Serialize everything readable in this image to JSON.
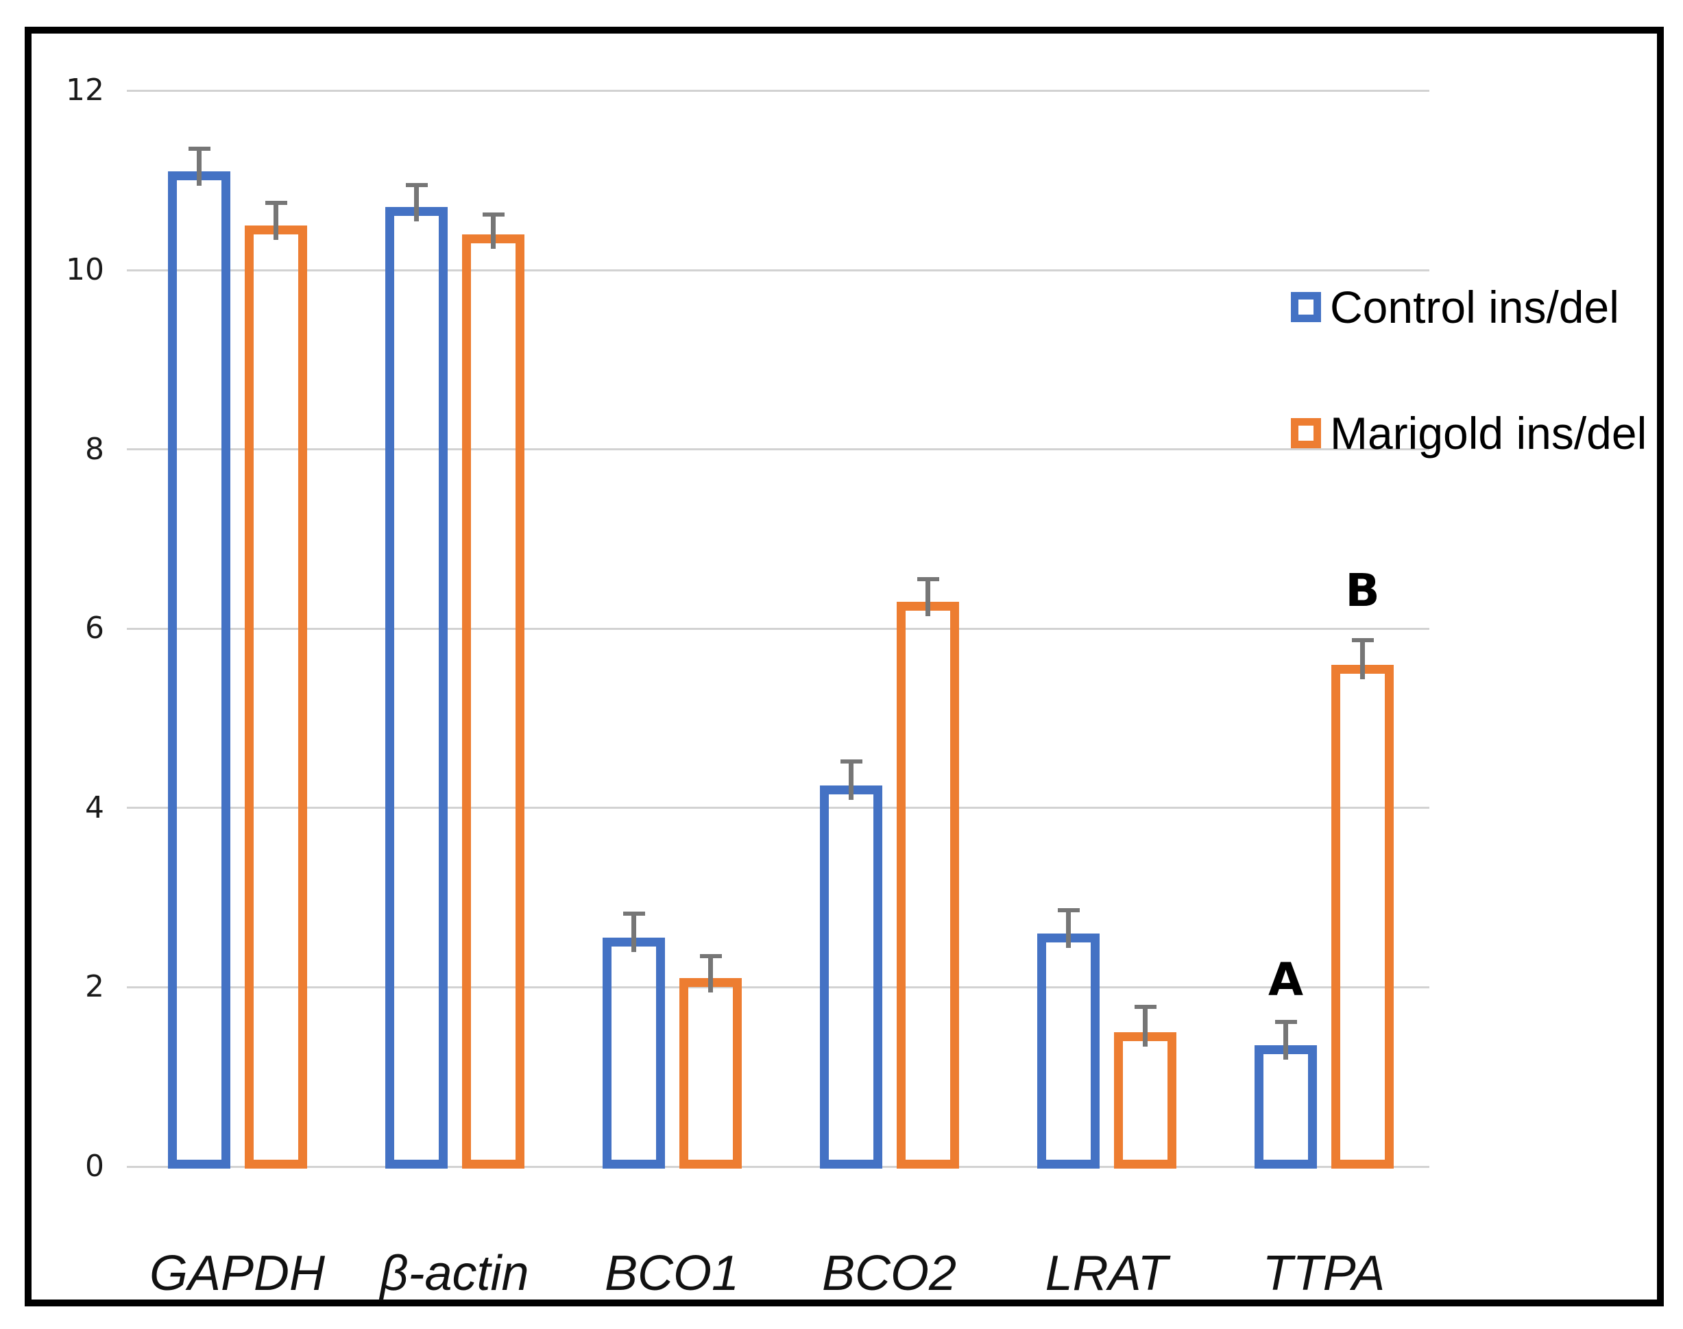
{
  "chart_data": {
    "type": "bar",
    "title": "",
    "xlabel": "",
    "ylabel": "",
    "categories": [
      "GAPDH",
      "β-actin",
      "BCO1",
      "BCO2",
      "LRAT",
      "TTPA"
    ],
    "series": [
      {
        "name": "Control ins/del",
        "color": "#4472C4",
        "values": [
          11.1,
          10.7,
          2.55,
          4.25,
          2.6,
          1.35
        ],
        "errors": [
          0.25,
          0.25,
          0.27,
          0.27,
          0.26,
          0.26
        ]
      },
      {
        "name": "Marigold ins/del",
        "color": "#ED7D31",
        "values": [
          10.5,
          10.4,
          2.1,
          6.3,
          1.5,
          5.6
        ],
        "errors": [
          0.25,
          0.22,
          0.25,
          0.25,
          0.28,
          0.27
        ]
      }
    ],
    "ylim": [
      0,
      12
    ],
    "yticks": [
      0,
      2,
      4,
      6,
      8,
      10,
      12
    ],
    "grid": true,
    "bar_style": "outlined-hollow",
    "legend_position": "upper-right-inside",
    "colors": {
      "gridline": "#d2d2d2",
      "error_bar": "#767676",
      "frame_border": "#000000",
      "background": "#ffffff",
      "text": "#000000"
    },
    "annotations": [
      {
        "text": "A",
        "category_index": 5,
        "series_index": 0,
        "y_value": 2.08
      },
      {
        "text": "B",
        "category_index": 5,
        "series_index": 1,
        "y_value": 6.42
      }
    ]
  }
}
